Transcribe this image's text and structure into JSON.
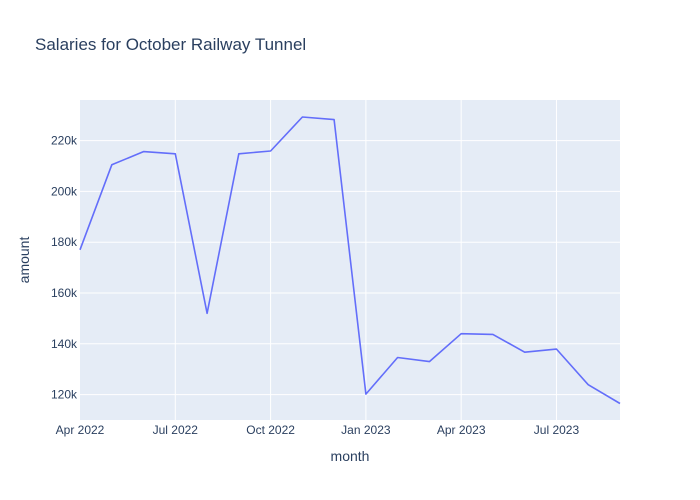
{
  "chart_data": {
    "type": "line",
    "title": "Salaries for October Railway Tunnel",
    "xlabel": "month",
    "ylabel": "amount",
    "x": [
      "2022-04",
      "2022-05",
      "2022-06",
      "2022-07",
      "2022-08",
      "2022-09",
      "2022-10",
      "2022-11",
      "2022-12",
      "2023-01",
      "2023-02",
      "2023-03",
      "2023-04",
      "2023-05",
      "2023-06",
      "2023-07",
      "2023-08",
      "2023-09"
    ],
    "series": [
      {
        "values": [
          177000,
          210500,
          215700,
          214800,
          152000,
          214800,
          215900,
          229300,
          228300,
          120200,
          134600,
          133000,
          144000,
          143700,
          136700,
          137900,
          123900,
          116500
        ]
      }
    ],
    "xlim": [
      "2022-04",
      "2023-09"
    ],
    "ylim": [
      110000,
      236000
    ],
    "x_ticks": [
      {
        "x": "2022-04",
        "label": "Apr 2022"
      },
      {
        "x": "2022-07",
        "label": "Jul 2022"
      },
      {
        "x": "2022-10",
        "label": "Oct 2022"
      },
      {
        "x": "2023-01",
        "label": "Jan 2023"
      },
      {
        "x": "2023-04",
        "label": "Apr 2023"
      },
      {
        "x": "2023-07",
        "label": "Jul 2023"
      }
    ],
    "y_ticks": [
      {
        "y": 120000,
        "label": "120k"
      },
      {
        "y": 140000,
        "label": "140k"
      },
      {
        "y": 160000,
        "label": "160k"
      },
      {
        "y": 180000,
        "label": "180k"
      },
      {
        "y": 200000,
        "label": "200k"
      },
      {
        "y": 220000,
        "label": "220k"
      }
    ],
    "grid": true,
    "colors": {
      "plot_bg": "#e5ecf6",
      "line": "#636efa"
    }
  }
}
